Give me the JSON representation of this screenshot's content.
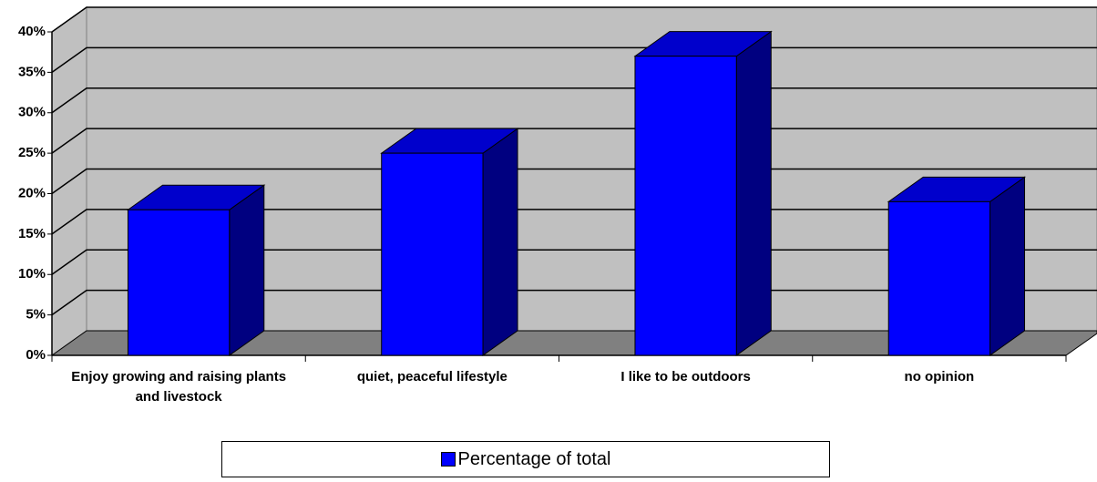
{
  "chart_data": {
    "type": "bar3d",
    "categories": [
      "Enjoy growing and raising plants and livestock",
      "quiet, peaceful lifestyle",
      "I like to be outdoors",
      "no opinion"
    ],
    "series": [
      {
        "name": "Percentage of total",
        "color": "#0000ff",
        "values": [
          18,
          25,
          37,
          19
        ]
      }
    ],
    "ylim": [
      0,
      40
    ],
    "yticks": [
      {
        "value": 0,
        "label": "0%"
      },
      {
        "value": 5,
        "label": "5%"
      },
      {
        "value": 10,
        "label": "10%"
      },
      {
        "value": 15,
        "label": "15%"
      },
      {
        "value": 20,
        "label": "20%"
      },
      {
        "value": 25,
        "label": "25%"
      },
      {
        "value": 30,
        "label": "30%"
      },
      {
        "value": 35,
        "label": "35%"
      },
      {
        "value": 40,
        "label": "40%"
      }
    ],
    "grid": true,
    "legend": "bottom"
  }
}
